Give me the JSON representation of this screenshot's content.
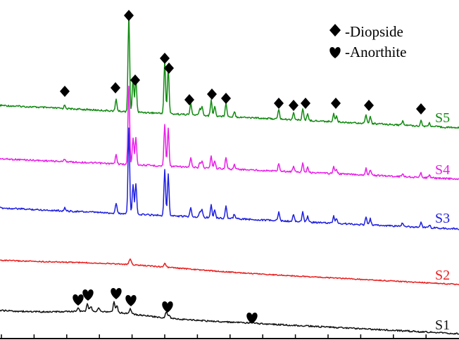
{
  "chart_data": {
    "type": "line",
    "title": "",
    "xlabel": "",
    "ylabel": "",
    "legend": {
      "placement": "top-right",
      "entries": [
        {
          "symbol": "diamond",
          "label": "-Diopside"
        },
        {
          "symbol": "heart",
          "label": "-Anorthite"
        }
      ]
    },
    "series": [
      {
        "name": "S5",
        "color": "#118a11"
      },
      {
        "name": "S4",
        "color": "#e81ee8"
      },
      {
        "name": "S3",
        "color": "#1e1ee0"
      },
      {
        "name": "S2",
        "color": "#e81e1e"
      },
      {
        "name": "S1",
        "color": "#111111"
      }
    ],
    "x_ticks_count": 14,
    "y_ticks_shown": false,
    "grid": false
  }
}
